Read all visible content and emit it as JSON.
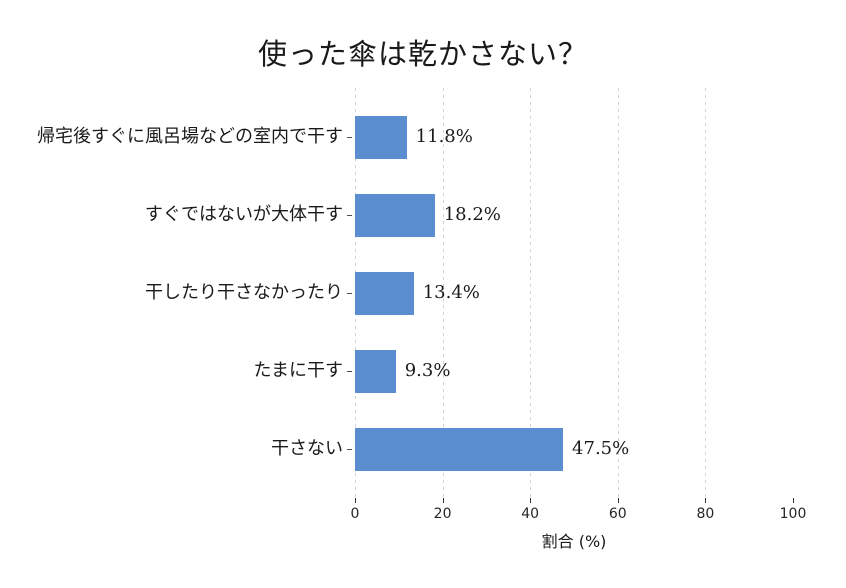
{
  "title": "使った傘は乾かさない？",
  "chart_data": {
    "type": "bar",
    "orientation": "horizontal",
    "title": "使った傘は乾かさない？",
    "categories": [
      "帰宅後すぐに風呂場などの室内で干す",
      "すぐではないが大体干す",
      "干したり干さなかったり",
      "たまに干す",
      "干さない"
    ],
    "values": [
      11.8,
      18.2,
      13.4,
      9.3,
      47.5
    ],
    "value_labels": [
      "11.8%",
      "18.2%",
      "13.4%",
      "9.3%",
      "47.5%"
    ],
    "xlabel": "割合 (%)",
    "ylabel": "",
    "xlim": [
      0,
      100
    ],
    "xticks": [
      0,
      20,
      40,
      60,
      80,
      100
    ],
    "xtick_labels": [
      "0",
      "20",
      "40",
      "60",
      "80",
      "100"
    ],
    "gridlines_at": [
      0,
      20,
      40,
      60,
      80
    ],
    "grid_style": "vertical-dashed",
    "legend": "none",
    "bar_color": "#5b8dd1",
    "grid_color": "#d3d3d3",
    "text_color": "#1a1a1a"
  }
}
